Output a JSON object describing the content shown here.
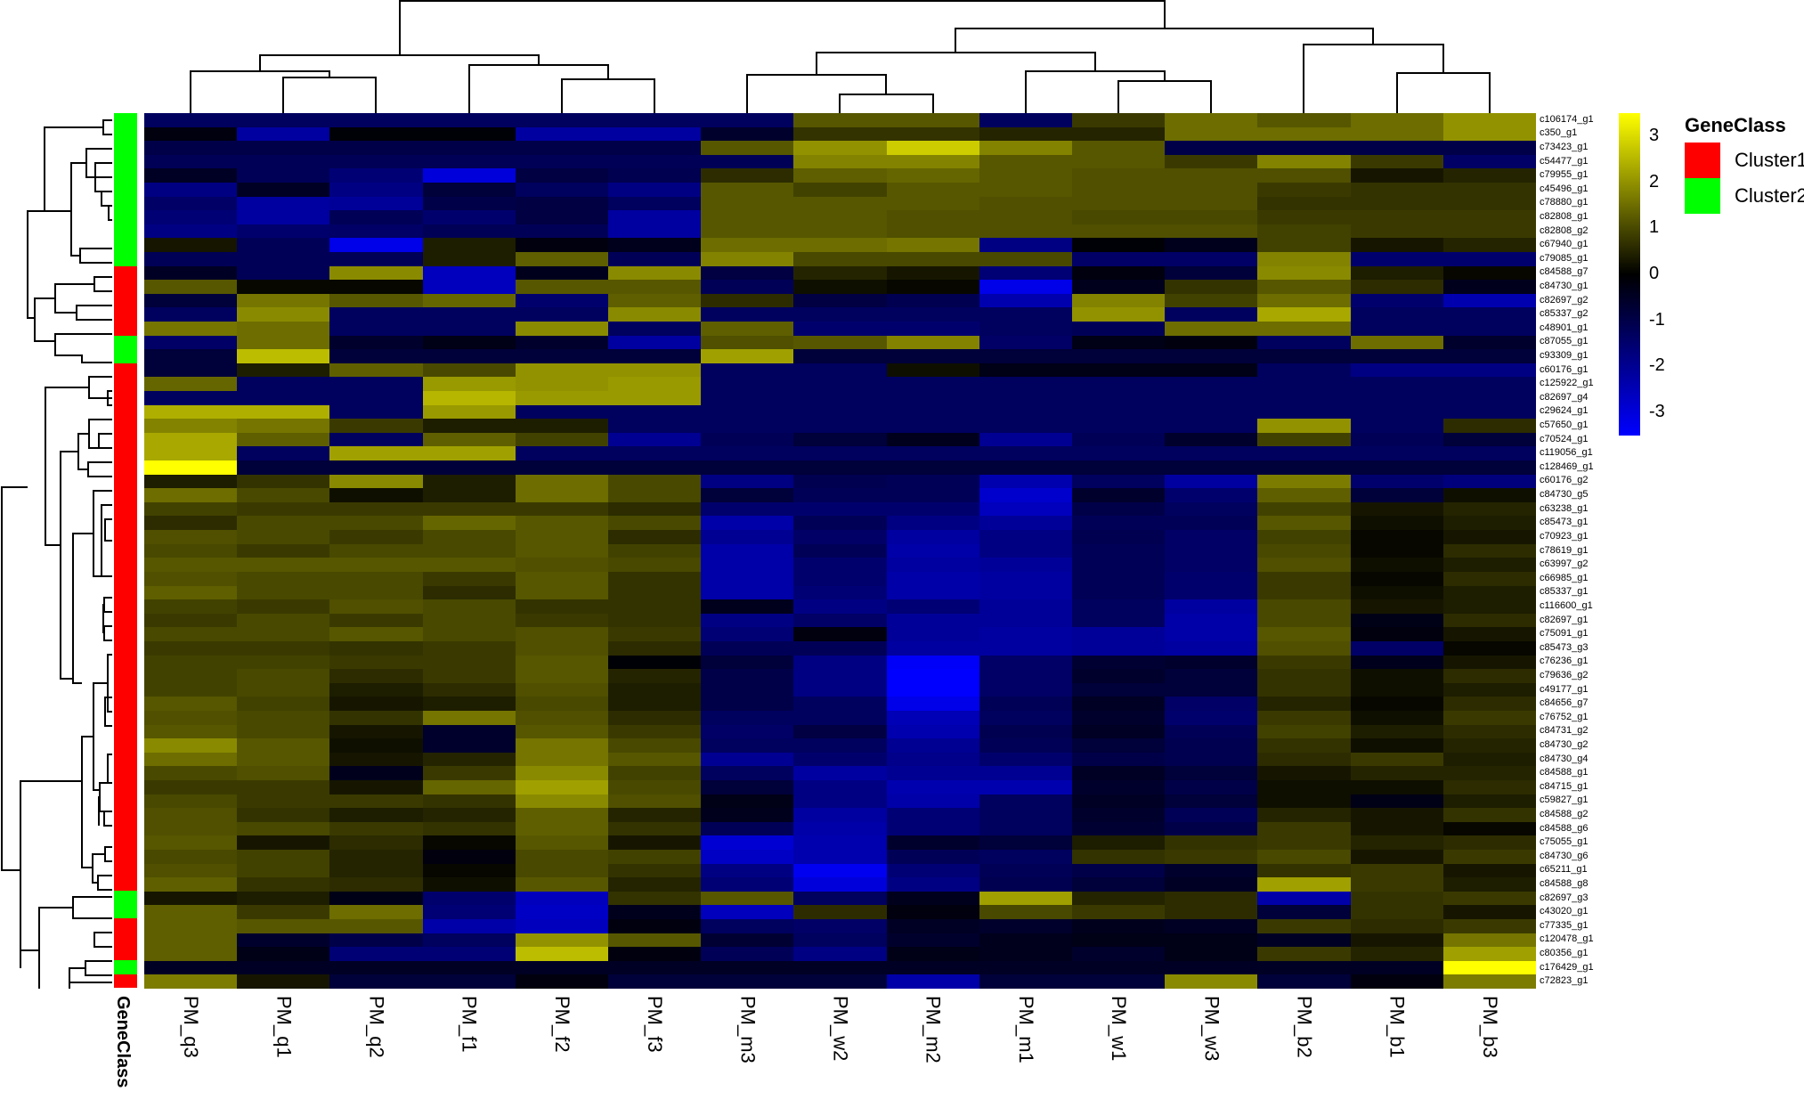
{
  "chart_data": {
    "type": "heatmap",
    "title": "",
    "xlabel": "",
    "ylabel": "",
    "columns": [
      "PM_q3",
      "PM_q1",
      "PM_q2",
      "PM_f1",
      "PM_f2",
      "PM_f3",
      "PM_m3",
      "PM_w2",
      "PM_m2",
      "PM_m1",
      "PM_w1",
      "PM_w3",
      "PM_b2",
      "PM_b1",
      "PM_b3"
    ],
    "rows": [
      "c106174_g1",
      "c350_g1",
      "c73423_g1",
      "c54477_g1",
      "c79955_g1",
      "c45496_g1",
      "c78880_g1",
      "c82808_g1",
      "c82808_g2",
      "c67940_g1",
      "c79085_g1",
      "c84588_g7",
      "c84730_g1",
      "c82697_g2",
      "c85337_g2",
      "c48901_g1",
      "c87055_g1",
      "c93309_g1",
      "c60176_g1",
      "c125922_g1",
      "c82697_g4",
      "c29624_g1",
      "c57650_g1",
      "c70524_g1",
      "c119056_g1",
      "c128469_g1",
      "c60176_g2",
      "c84730_g5",
      "c63238_g1",
      "c85473_g1",
      "c70923_g1",
      "c78619_g1",
      "c63997_g2",
      "c66985_g1",
      "c85337_g1",
      "c116600_g1",
      "c82697_g1",
      "c75091_g1",
      "c85473_g3",
      "c76236_g1",
      "c79636_g2",
      "c49177_g1",
      "c84656_g7",
      "c76752_g1",
      "c84731_g2",
      "c84730_g2",
      "c84730_g4",
      "c84588_g1",
      "c84715_g1",
      "c59827_g1",
      "c84588_g2",
      "c84588_g6",
      "c75055_g1",
      "c84730_g6",
      "c65211_g1",
      "c84588_g8",
      "c82697_g3",
      "c43020_g1",
      "c77335_g1",
      "c120478_g1",
      "c80356_g1",
      "c176429_g1",
      "c72823_g1"
    ],
    "row_class": [
      "Cluster2",
      "Cluster2",
      "Cluster2",
      "Cluster2",
      "Cluster2",
      "Cluster2",
      "Cluster2",
      "Cluster2",
      "Cluster2",
      "Cluster2",
      "Cluster2",
      "Cluster1",
      "Cluster1",
      "Cluster1",
      "Cluster1",
      "Cluster1",
      "Cluster2",
      "Cluster2",
      "Cluster1",
      "Cluster1",
      "Cluster1",
      "Cluster1",
      "Cluster1",
      "Cluster1",
      "Cluster1",
      "Cluster1",
      "Cluster1",
      "Cluster1",
      "Cluster1",
      "Cluster1",
      "Cluster1",
      "Cluster1",
      "Cluster1",
      "Cluster1",
      "Cluster1",
      "Cluster1",
      "Cluster1",
      "Cluster1",
      "Cluster1",
      "Cluster1",
      "Cluster1",
      "Cluster1",
      "Cluster1",
      "Cluster1",
      "Cluster1",
      "Cluster1",
      "Cluster1",
      "Cluster1",
      "Cluster1",
      "Cluster1",
      "Cluster1",
      "Cluster1",
      "Cluster1",
      "Cluster1",
      "Cluster1",
      "Cluster1",
      "Cluster2",
      "Cluster2",
      "Cluster1",
      "Cluster1",
      "Cluster1",
      "Cluster2",
      "Cluster1"
    ],
    "values": [
      [
        -1.3,
        -1.3,
        -1.3,
        -1.3,
        -1.3,
        -1.3,
        -1.3,
        1.2,
        1.2,
        -1.3,
        0.8,
        1.5,
        1.2,
        1.5,
        2.0
      ],
      [
        -0.2,
        -2.2,
        -0.1,
        -0.1,
        -2.2,
        -2.2,
        -0.6,
        0.7,
        0.7,
        0.5,
        0.5,
        1.5,
        1.5,
        1.5,
        2.0
      ],
      [
        -1.0,
        -1.0,
        -1.0,
        -1.0,
        -1.0,
        -1.0,
        1.2,
        2.0,
        2.8,
        1.8,
        1.2,
        -1.0,
        -1.0,
        -1.0,
        -1.0
      ],
      [
        -1.2,
        -1.2,
        -1.2,
        -1.2,
        -1.2,
        -1.2,
        -1.2,
        1.8,
        1.8,
        1.2,
        1.2,
        0.8,
        1.8,
        0.8,
        -1.4
      ],
      [
        -0.5,
        -1.2,
        -1.6,
        -3.0,
        -0.9,
        -1.1,
        0.6,
        1.3,
        1.4,
        1.2,
        1.1,
        1.1,
        1.1,
        0.3,
        0.5
      ],
      [
        -1.8,
        -0.5,
        -1.8,
        -0.8,
        -1.3,
        -1.8,
        1.2,
        0.9,
        1.2,
        1.2,
        1.1,
        1.1,
        0.8,
        0.7,
        0.7
      ],
      [
        -1.4,
        -2.2,
        -2.1,
        -1.0,
        -0.9,
        -1.3,
        1.2,
        1.2,
        1.2,
        1.1,
        1.1,
        1.1,
        0.7,
        0.7,
        0.7
      ],
      [
        -1.6,
        -2.2,
        -1.2,
        -1.5,
        -0.9,
        -2.2,
        1.2,
        1.2,
        1.1,
        1.1,
        1.0,
        1.0,
        0.8,
        0.8,
        0.8
      ],
      [
        -1.8,
        -1.5,
        -1.4,
        -1.2,
        -1.2,
        -2.2,
        1.2,
        1.2,
        1.1,
        1.1,
        1.1,
        1.1,
        0.9,
        0.8,
        0.8
      ],
      [
        0.3,
        -1.2,
        -3.2,
        0.4,
        -0.2,
        -0.4,
        1.5,
        1.5,
        1.6,
        -1.8,
        -0.1,
        -0.4,
        0.9,
        0.3,
        0.5
      ],
      [
        -1.2,
        -1.2,
        -1.2,
        0.4,
        1.3,
        -1.2,
        1.8,
        1.0,
        1.0,
        1.0,
        -1.4,
        -1.4,
        1.8,
        -1.5,
        -1.5
      ],
      [
        -0.5,
        -1.2,
        1.9,
        -2.6,
        -0.4,
        1.9,
        -0.9,
        0.5,
        0.3,
        -1.6,
        -0.2,
        -0.8,
        1.9,
        0.4,
        0.1
      ],
      [
        1.2,
        0.1,
        0.1,
        -2.6,
        1.2,
        1.2,
        -1.2,
        0.2,
        0.1,
        -3.2,
        -0.4,
        0.7,
        1.2,
        0.6,
        -0.4
      ],
      [
        -0.8,
        1.6,
        1.2,
        1.4,
        -1.5,
        1.3,
        0.6,
        -0.9,
        -1.1,
        -2.4,
        1.8,
        0.9,
        1.5,
        -1.5,
        -2.4
      ],
      [
        -1.3,
        1.9,
        -1.3,
        -1.3,
        -1.3,
        1.9,
        -1.3,
        -1.3,
        -1.3,
        -1.3,
        2.0,
        -1.3,
        2.3,
        -1.3,
        -1.3
      ],
      [
        1.6,
        1.5,
        -1.3,
        -1.3,
        1.9,
        -1.3,
        1.3,
        -1.5,
        -1.5,
        -1.3,
        -1.2,
        1.5,
        1.5,
        -1.3,
        -1.3
      ],
      [
        -1.4,
        1.5,
        -0.6,
        -0.3,
        -0.6,
        -2.2,
        1.1,
        1.2,
        1.8,
        -1.4,
        -0.3,
        -0.2,
        -1.3,
        1.5,
        -0.6
      ],
      [
        -0.8,
        2.6,
        -0.8,
        -0.8,
        -0.8,
        -0.8,
        2.2,
        -0.8,
        -0.8,
        -0.8,
        -0.8,
        -0.8,
        -0.8,
        -0.8,
        -0.8
      ],
      [
        -0.8,
        0.4,
        1.3,
        1.0,
        2.0,
        2.0,
        -1.3,
        -1.3,
        0.2,
        -0.3,
        -0.3,
        -0.3,
        -1.3,
        -1.8,
        -1.8
      ],
      [
        1.4,
        -1.3,
        -1.3,
        2.1,
        2.0,
        2.1,
        -1.3,
        -1.3,
        -1.3,
        -1.3,
        -1.3,
        -1.3,
        -1.3,
        -1.3,
        -1.3
      ],
      [
        -1.3,
        -1.3,
        -1.3,
        2.5,
        2.1,
        2.1,
        -1.3,
        -1.3,
        -1.3,
        -1.3,
        -1.3,
        -1.3,
        -1.3,
        -1.3,
        -1.3
      ],
      [
        2.4,
        2.4,
        -1.3,
        2.1,
        -1.3,
        -1.3,
        -1.3,
        -1.3,
        -1.3,
        -1.3,
        -1.3,
        -1.3,
        -1.3,
        -1.3,
        -1.3
      ],
      [
        1.8,
        1.6,
        0.8,
        0.4,
        0.4,
        -1.3,
        -1.3,
        -1.3,
        -1.3,
        -1.3,
        -1.3,
        -1.3,
        2.0,
        -1.3,
        0.6
      ],
      [
        2.3,
        1.3,
        -1.3,
        1.3,
        0.9,
        -2.0,
        -1.2,
        -0.8,
        -0.4,
        -2.0,
        -1.2,
        -0.6,
        0.9,
        -1.2,
        -0.8
      ],
      [
        2.3,
        -1.3,
        2.2,
        2.2,
        -1.3,
        -1.3,
        -1.3,
        -1.3,
        -1.3,
        -1.3,
        -1.3,
        -1.3,
        -1.3,
        -1.3,
        -1.3
      ],
      [
        3.5,
        -0.8,
        -0.8,
        -0.8,
        -0.8,
        -0.8,
        -0.8,
        -0.8,
        -0.8,
        -0.8,
        -0.8,
        -0.8,
        -0.8,
        -0.8,
        -0.8
      ],
      [
        0.4,
        0.7,
        1.9,
        0.4,
        1.5,
        1.0,
        -1.8,
        -1.1,
        -1.2,
        -2.4,
        -1.3,
        -2.2,
        1.7,
        -1.5,
        -1.7
      ],
      [
        1.5,
        1.0,
        0.2,
        0.4,
        1.5,
        1.0,
        -0.8,
        -1.2,
        -1.2,
        -2.8,
        -0.6,
        -1.5,
        1.3,
        -0.8,
        0.2
      ],
      [
        0.9,
        0.8,
        0.8,
        0.8,
        0.8,
        0.6,
        -1.5,
        -1.5,
        -1.5,
        -2.6,
        -1.0,
        -1.3,
        0.9,
        0.3,
        0.5
      ],
      [
        0.6,
        1.0,
        1.0,
        1.4,
        1.2,
        1.0,
        -2.3,
        -1.2,
        -1.8,
        -2.1,
        -1.2,
        -1.2,
        1.2,
        0.2,
        0.4
      ],
      [
        1.1,
        1.0,
        0.8,
        1.0,
        1.2,
        0.6,
        -2.0,
        -1.4,
        -2.2,
        -1.8,
        -1.1,
        -1.4,
        0.9,
        0.1,
        0.3
      ],
      [
        1.0,
        0.8,
        1.0,
        1.0,
        1.2,
        0.9,
        -2.3,
        -1.2,
        -2.3,
        -1.8,
        -1.2,
        -1.4,
        1.0,
        0.1,
        0.6
      ],
      [
        1.2,
        1.2,
        1.2,
        1.2,
        1.1,
        1.0,
        -2.3,
        -1.5,
        -2.2,
        -2.1,
        -1.2,
        -1.4,
        1.1,
        0.2,
        0.4
      ],
      [
        1.1,
        1.0,
        1.0,
        0.8,
        1.2,
        0.7,
        -2.3,
        -1.5,
        -2.3,
        -2.2,
        -1.2,
        -1.5,
        0.8,
        0.1,
        0.6
      ],
      [
        1.3,
        1.0,
        1.0,
        0.6,
        1.2,
        0.7,
        -2.3,
        -1.6,
        -2.3,
        -2.2,
        -1.2,
        -1.5,
        0.8,
        0.2,
        0.4
      ],
      [
        0.9,
        0.8,
        1.1,
        1.0,
        0.7,
        0.7,
        -0.4,
        -1.8,
        -1.6,
        -2.1,
        -1.3,
        -2.2,
        1.0,
        0.3,
        0.4
      ],
      [
        0.8,
        1.0,
        0.8,
        1.0,
        0.8,
        0.7,
        -1.8,
        -1.4,
        -2.1,
        -2.1,
        -1.3,
        -2.3,
        1.0,
        -0.3,
        0.6
      ],
      [
        1.0,
        1.0,
        1.2,
        1.0,
        1.1,
        0.8,
        -1.6,
        -0.2,
        -2.1,
        -2.2,
        -2.1,
        -2.3,
        1.2,
        -0.2,
        0.3
      ],
      [
        0.8,
        0.8,
        0.7,
        0.8,
        1.1,
        0.6,
        -1.2,
        -1.2,
        -2.2,
        -2.2,
        -2.1,
        -2.2,
        1.1,
        -1.4,
        0.1
      ],
      [
        0.9,
        0.9,
        0.8,
        0.8,
        1.2,
        -0.1,
        -0.8,
        -1.8,
        -3.4,
        -1.4,
        -0.7,
        -0.6,
        0.8,
        -0.4,
        0.3
      ],
      [
        0.9,
        1.0,
        0.6,
        0.8,
        1.2,
        0.5,
        -1.0,
        -1.8,
        -3.6,
        -1.4,
        -0.6,
        -0.8,
        0.7,
        0.2,
        0.6
      ],
      [
        0.9,
        1.0,
        0.4,
        0.6,
        1.1,
        0.4,
        -1.0,
        -1.8,
        -3.8,
        -1.4,
        -0.8,
        -0.8,
        0.7,
        0.2,
        0.4
      ],
      [
        1.2,
        0.9,
        0.3,
        0.4,
        1.0,
        0.4,
        -1.0,
        -1.3,
        -3.2,
        -1.2,
        -0.5,
        -1.4,
        0.5,
        0.1,
        0.6
      ],
      [
        1.1,
        1.0,
        0.7,
        1.6,
        1.1,
        0.6,
        -1.3,
        -1.3,
        -2.5,
        -1.3,
        -0.6,
        -1.5,
        0.8,
        0.2,
        0.8
      ],
      [
        1.2,
        1.0,
        0.3,
        -0.6,
        1.2,
        0.8,
        -1.4,
        -0.9,
        -2.4,
        -1.1,
        -0.5,
        -1.2,
        0.9,
        0.4,
        0.6
      ],
      [
        1.9,
        1.2,
        0.2,
        -0.6,
        1.6,
        1.0,
        -1.3,
        -1.3,
        -2.0,
        -1.2,
        -0.8,
        -1.1,
        0.7,
        0.2,
        0.5
      ],
      [
        1.5,
        1.2,
        0.3,
        0.5,
        1.6,
        1.2,
        -2.0,
        -1.5,
        -1.9,
        -1.5,
        -1.0,
        -1.1,
        0.6,
        0.8,
        0.4
      ],
      [
        1.0,
        1.1,
        -0.4,
        0.8,
        1.9,
        0.9,
        -1.3,
        -2.2,
        -2.0,
        -2.0,
        -0.5,
        -0.8,
        0.3,
        0.5,
        0.5
      ],
      [
        0.8,
        0.8,
        0.3,
        1.4,
        2.2,
        1.0,
        -0.8,
        -1.8,
        -2.4,
        -2.4,
        -0.6,
        -1.0,
        0.2,
        0.2,
        0.6
      ],
      [
        1.0,
        0.8,
        0.8,
        0.7,
        1.9,
        1.1,
        -0.3,
        -1.8,
        -2.3,
        -1.3,
        -0.5,
        -0.8,
        0.2,
        -0.3,
        0.4
      ],
      [
        1.1,
        0.7,
        0.4,
        0.5,
        1.3,
        0.5,
        -0.4,
        -2.2,
        -1.6,
        -1.3,
        -0.6,
        -1.2,
        0.5,
        0.3,
        0.7
      ],
      [
        1.1,
        1.0,
        0.8,
        0.7,
        1.3,
        0.7,
        -1.2,
        -2.3,
        -1.6,
        -1.3,
        -0.7,
        -1.0,
        0.8,
        0.3,
        0.1
      ],
      [
        1.2,
        0.3,
        0.6,
        0.1,
        1.2,
        0.3,
        -2.9,
        -2.4,
        -0.6,
        -0.8,
        0.4,
        0.7,
        0.8,
        0.5,
        0.6
      ],
      [
        1.0,
        0.9,
        0.5,
        -0.2,
        1.0,
        0.9,
        -2.7,
        -2.4,
        -1.2,
        -1.3,
        0.7,
        0.8,
        1.0,
        0.3,
        0.8
      ],
      [
        1.1,
        0.9,
        0.5,
        0.1,
        1.0,
        0.7,
        -1.8,
        -3.3,
        -1.6,
        -1.2,
        -1.0,
        -0.6,
        0.7,
        0.8,
        0.3
      ],
      [
        1.3,
        0.7,
        0.6,
        0.2,
        1.2,
        0.5,
        -1.6,
        -3.0,
        -1.8,
        -1.1,
        -0.8,
        -0.5,
        2.2,
        0.8,
        0.4
      ],
      [
        0.3,
        0.4,
        -0.3,
        -1.5,
        -2.6,
        0.7,
        1.2,
        -1.3,
        -0.4,
        2.2,
        0.5,
        0.6,
        -2.3,
        0.7,
        0.8
      ],
      [
        1.3,
        0.8,
        1.5,
        -1.6,
        -2.7,
        -0.4,
        -2.6,
        0.6,
        -0.2,
        1.0,
        0.8,
        0.6,
        -0.8,
        0.7,
        0.3
      ],
      [
        1.3,
        1.2,
        1.2,
        -2.3,
        -2.6,
        -0.2,
        -1.3,
        -1.4,
        -0.5,
        -0.6,
        -0.4,
        -0.5,
        0.8,
        0.6,
        0.8
      ],
      [
        1.3,
        -0.6,
        -1.0,
        -1.3,
        2.0,
        1.2,
        -0.7,
        -1.3,
        -0.6,
        -0.4,
        -0.3,
        -0.3,
        -0.5,
        0.3,
        1.6
      ],
      [
        1.3,
        -0.3,
        -1.6,
        -1.6,
        2.6,
        -0.2,
        -1.2,
        -1.8,
        -0.3,
        -0.4,
        -0.6,
        -0.3,
        0.8,
        0.5,
        2.2
      ],
      [
        -0.5,
        -0.5,
        -0.5,
        -0.5,
        -0.5,
        -0.5,
        -0.5,
        -0.5,
        -0.5,
        -0.5,
        -0.5,
        -0.5,
        -0.5,
        -0.5,
        3.5
      ],
      [
        1.7,
        0.3,
        -0.8,
        -0.8,
        -0.2,
        -0.8,
        -0.8,
        -0.8,
        -2.3,
        -0.8,
        -0.8,
        1.9,
        -0.8,
        -0.2,
        1.7
      ]
    ],
    "color_key": {
      "ticks": [
        "3",
        "2",
        "1",
        "0",
        "-1",
        "-2",
        "-3"
      ],
      "range": [
        -3.5,
        3.5
      ],
      "low_color": "#0000ff",
      "mid_color": "#000000",
      "high_color": "#ffff00"
    },
    "legend": {
      "title": "GeneClass",
      "items": [
        {
          "label": "Cluster1",
          "color": "#ff0000"
        },
        {
          "label": "Cluster2",
          "color": "#00ff00"
        }
      ]
    },
    "sidebar_label": "GeneClass",
    "col_dendrogram": true,
    "row_dendrogram": true,
    "grid": false
  }
}
